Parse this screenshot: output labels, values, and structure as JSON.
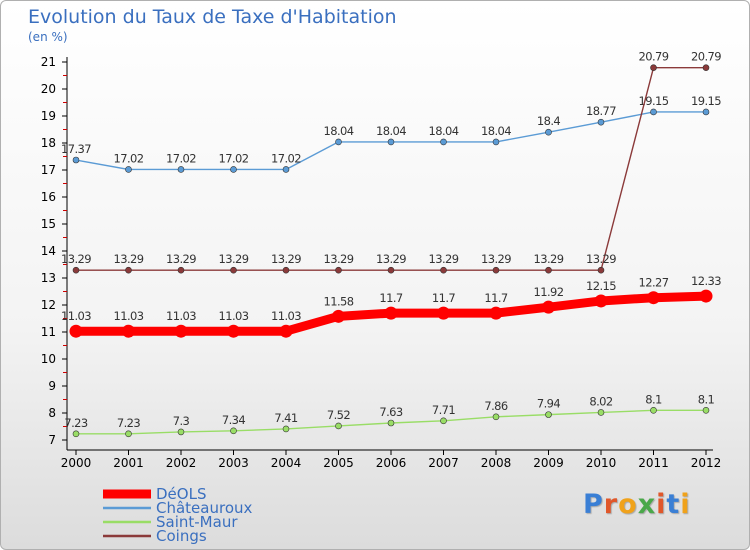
{
  "title": "Evolution du Taux de Taxe d'Habitation",
  "unit_label": "(en %)",
  "logo": {
    "text": "Proxiti",
    "colors": [
      "#3a7fd5",
      "#e0572a",
      "#f0a21b",
      "#4aa84a",
      "#e0572a",
      "#3a7fd5",
      "#f0a21b"
    ]
  },
  "chart_data": {
    "type": "line",
    "x": [
      "2000",
      "2001",
      "2002",
      "2003",
      "2004",
      "2005",
      "2006",
      "2007",
      "2008",
      "2009",
      "2010",
      "2011",
      "2012"
    ],
    "ylim": [
      7,
      21
    ],
    "yticks": [
      7,
      8,
      9,
      10,
      11,
      12,
      13,
      14,
      15,
      16,
      17,
      18,
      19,
      20,
      21
    ],
    "grid": false,
    "legend_position": "bottom-left",
    "series": [
      {
        "name": "DéOLS",
        "color": "#ff0000",
        "highlight": true,
        "values": [
          11.03,
          11.03,
          11.03,
          11.03,
          11.03,
          11.58,
          11.7,
          11.7,
          11.7,
          11.92,
          12.15,
          12.27,
          12.33
        ],
        "labels": [
          "11.03",
          "11.03",
          "11.03",
          "11.03",
          "11.03",
          "11.58",
          "11.7",
          "11.7",
          "11.7",
          "11.92",
          "12.15",
          "12.27",
          "12.33"
        ]
      },
      {
        "name": "Châteauroux",
        "color": "#5b9bd5",
        "values": [
          17.37,
          17.02,
          17.02,
          17.02,
          17.02,
          18.04,
          18.04,
          18.04,
          18.04,
          18.4,
          18.77,
          19.15,
          19.15
        ],
        "labels": [
          "17.37",
          "17.02",
          "17.02",
          "17.02",
          "17.02",
          "18.04",
          "18.04",
          "18.04",
          "18.04",
          "18.4",
          "18.77",
          "19.15",
          "19.15"
        ]
      },
      {
        "name": "Saint-Maur",
        "color": "#99dd66",
        "values": [
          7.23,
          7.23,
          7.3,
          7.34,
          7.41,
          7.52,
          7.63,
          7.71,
          7.86,
          7.94,
          8.02,
          8.1,
          8.1
        ],
        "labels": [
          "7.23",
          "7.23",
          "7.3",
          "7.34",
          "7.41",
          "7.52",
          "7.63",
          "7.71",
          "7.86",
          "7.94",
          "8.02",
          "8.1",
          "8.1"
        ]
      },
      {
        "name": "Coings",
        "color": "#8b3a3a",
        "values": [
          13.29,
          13.29,
          13.29,
          13.29,
          13.29,
          13.29,
          13.29,
          13.29,
          13.29,
          13.29,
          13.29,
          20.79,
          20.79
        ],
        "labels": [
          "13.29",
          "13.29",
          "13.29",
          "13.29",
          "13.29",
          "13.29",
          "13.29",
          "13.29",
          "13.29",
          "13.29",
          "13.29",
          "20.79",
          "20.79"
        ]
      }
    ]
  }
}
